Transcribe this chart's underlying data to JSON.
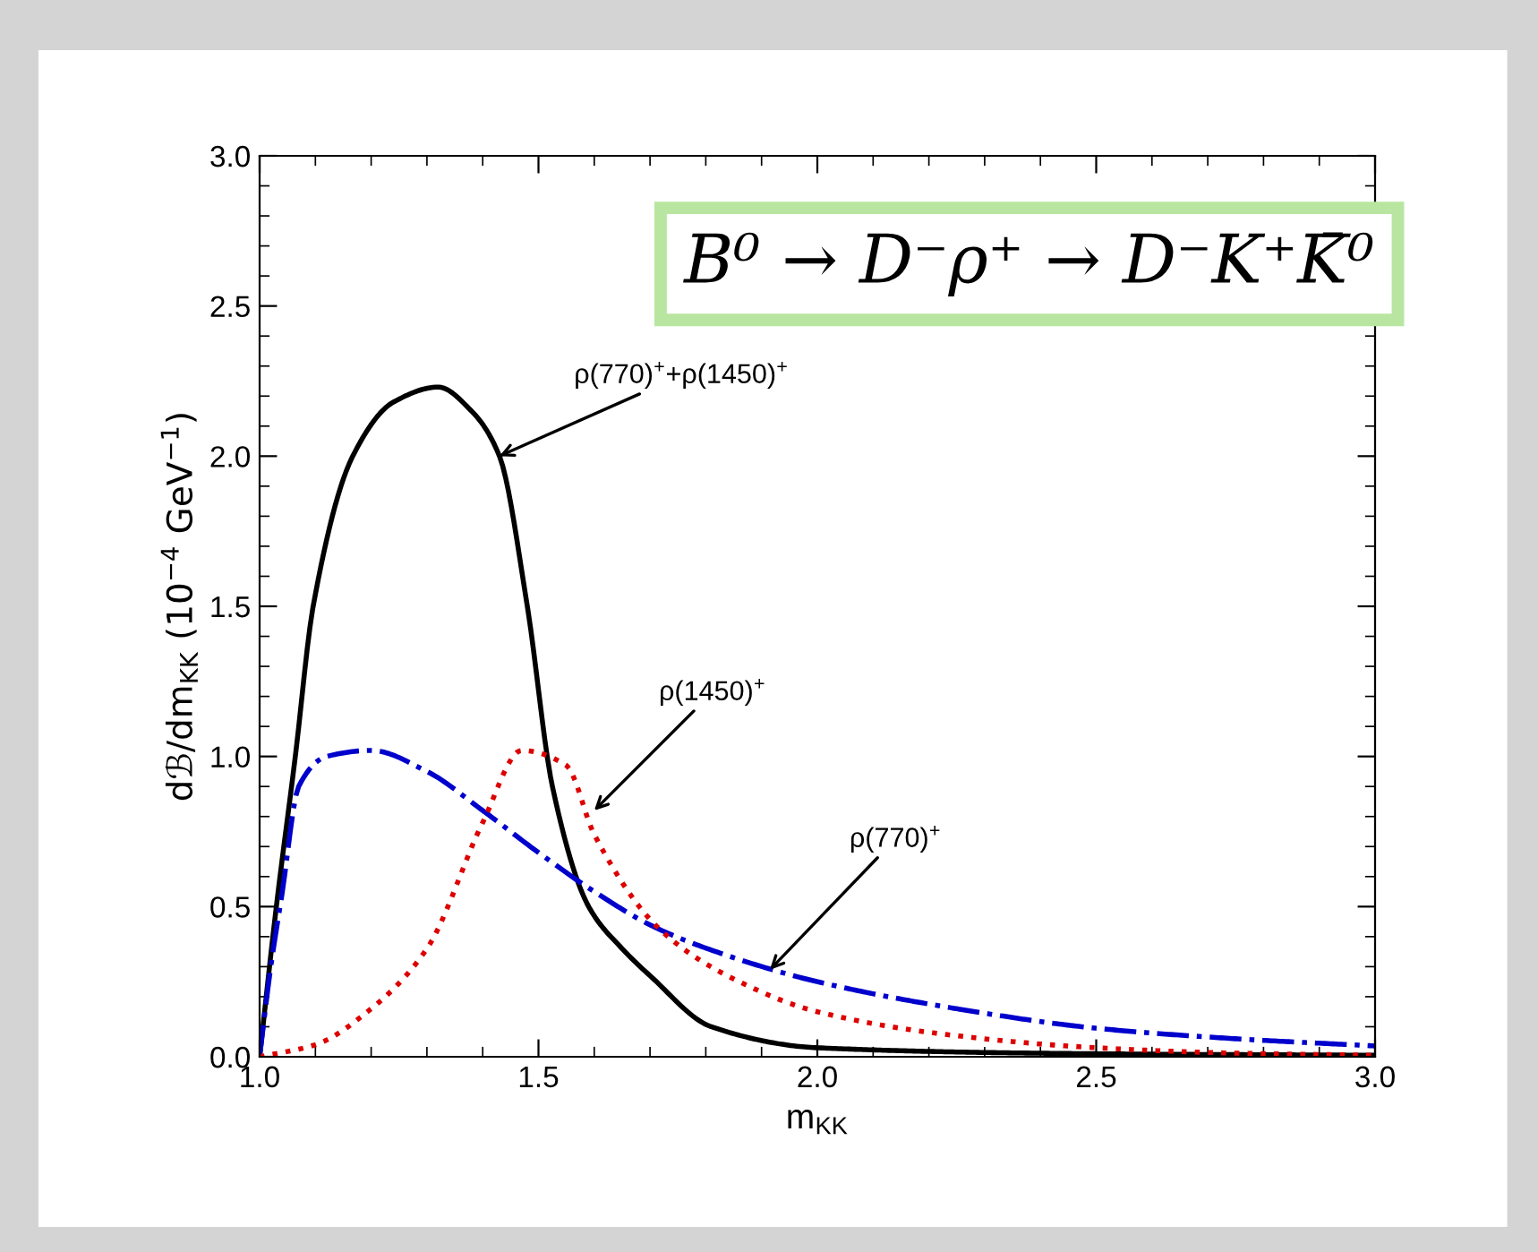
{
  "chart_data": {
    "type": "line",
    "title": "B⁰ → D⁻ρ⁺ → D⁻K⁺K̄⁰",
    "xlabel": "m$_{KK}$",
    "ylabel": "dℬ/dm$_{KK}$ (10$^{−4}$ GeV$^{−1}$)",
    "xlim": [
      1.0,
      3.0
    ],
    "ylim": [
      0.0,
      3.0
    ],
    "xticks": [
      {
        "value": 1.0,
        "label": "1.0"
      },
      {
        "value": 1.5,
        "label": "1.5"
      },
      {
        "value": 2.0,
        "label": "2.0"
      },
      {
        "value": 2.5,
        "label": "2.5"
      },
      {
        "value": 3.0,
        "label": "3.0"
      }
    ],
    "yticks": [
      {
        "value": 0.0,
        "label": "0.0"
      },
      {
        "value": 0.5,
        "label": "0.5"
      },
      {
        "value": 1.0,
        "label": "1.0"
      },
      {
        "value": 1.5,
        "label": "1.5"
      },
      {
        "value": 2.0,
        "label": "2.0"
      },
      {
        "value": 2.5,
        "label": "2.5"
      },
      {
        "value": 3.0,
        "label": "3.0"
      }
    ],
    "grid": false,
    "legend": false,
    "marker": "none",
    "series": [
      {
        "color": "#000000",
        "line_style": "solid",
        "x": [
          1.0,
          1.03,
          1.064,
          1.096,
          1.167,
          1.24,
          1.32,
          1.38,
          1.43,
          1.48,
          1.525,
          1.59,
          1.65,
          1.7,
          1.81,
          2.0,
          2.5,
          3.0
        ],
        "values": [
          0.0,
          0.5,
          1.0,
          1.5,
          2.0,
          2.18,
          2.23,
          2.15,
          2.0,
          1.5,
          0.9,
          0.5,
          0.36,
          0.27,
          0.1,
          0.03,
          0.01,
          0.005
        ]
      },
      {
        "color": "#0000cc",
        "line_style": "dashdot",
        "x": [
          1.0,
          1.02,
          1.04,
          1.07,
          1.12,
          1.2,
          1.3,
          1.4,
          1.5,
          1.6,
          1.71,
          1.85,
          2.0,
          2.25,
          2.5,
          2.75,
          3.0
        ],
        "values": [
          0.0,
          0.3,
          0.54,
          0.9,
          1.0,
          1.02,
          0.95,
          0.82,
          0.68,
          0.55,
          0.43,
          0.33,
          0.25,
          0.16,
          0.095,
          0.06,
          0.036
        ]
      },
      {
        "color": "#dd0000",
        "line_style": "dotted",
        "x": [
          1.0,
          1.1,
          1.2,
          1.3,
          1.4,
          1.47,
          1.55,
          1.6,
          1.72,
          1.86,
          2.0,
          2.25,
          2.5,
          2.75,
          3.0
        ],
        "values": [
          0.0,
          0.04,
          0.16,
          0.36,
          0.78,
          1.02,
          0.97,
          0.74,
          0.42,
          0.25,
          0.15,
          0.07,
          0.03,
          0.012,
          0.005
        ]
      }
    ],
    "annotations": [
      {
        "text": "ρ(770)$^{+}$+ρ(1450)$^{+}$",
        "x": 1.43,
        "y": 2.0
      },
      {
        "text": "ρ(1450)$^{+}$",
        "x": 1.6,
        "y": 0.82
      },
      {
        "text": "ρ(770)$^{+}$",
        "x": 1.915,
        "y": 0.29
      }
    ]
  }
}
